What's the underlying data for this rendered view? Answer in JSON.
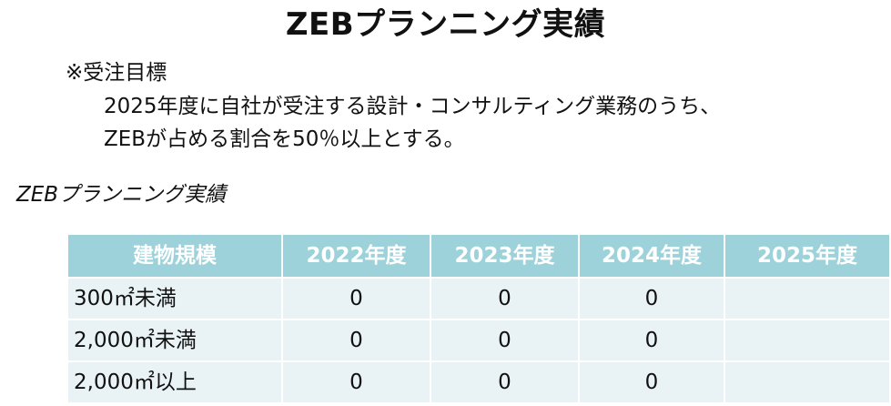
{
  "title": "ZEBプランニング実績",
  "goal": {
    "heading": "※受注目標",
    "lines": [
      "2025年度に自社が受注する設計・コンサルティング業務のうち、",
      "ZEBが占める割合を50％以上とする。"
    ]
  },
  "section_caption": "ZEBプランニング実績",
  "table": {
    "headers": [
      "建物規模",
      "2022年度",
      "2023年度",
      "2024年度",
      "2025年度"
    ],
    "rows": [
      {
        "label": "300㎡未満",
        "values": [
          "0",
          "0",
          "0",
          ""
        ]
      },
      {
        "label": "2,000㎡未満",
        "values": [
          "0",
          "0",
          "0",
          ""
        ]
      },
      {
        "label": "2,000㎡以上",
        "values": [
          "0",
          "0",
          "0",
          ""
        ]
      }
    ]
  },
  "colors": {
    "header_bg": "#9dd2da",
    "cell_bg": "#e9f3f5"
  }
}
